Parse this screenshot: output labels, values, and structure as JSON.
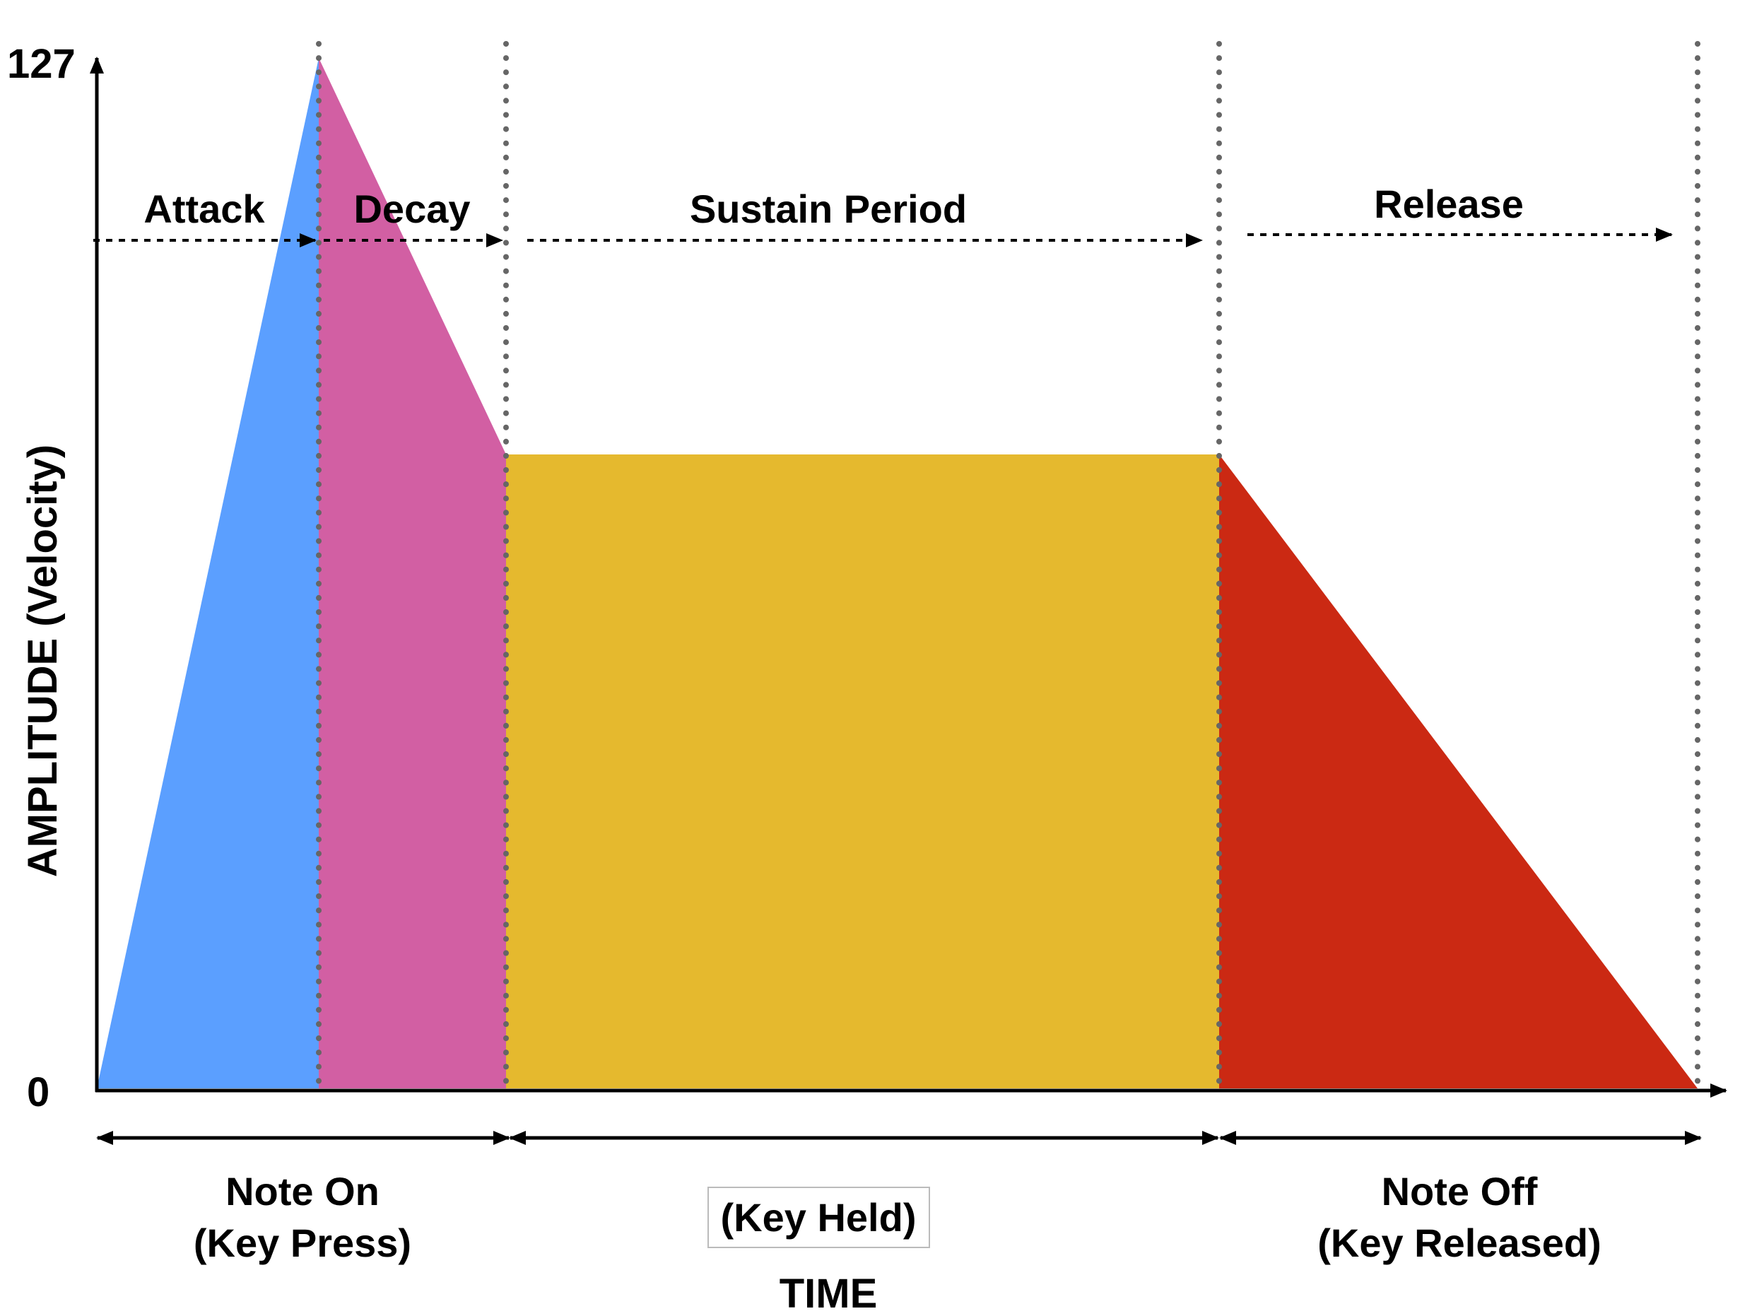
{
  "axes": {
    "y_label": "AMPLITUDE (Velocity)",
    "x_label": "TIME",
    "y_max_label": "127",
    "y_min_label": "0"
  },
  "phases": [
    {
      "label": "Attack",
      "color": "#5B9FFF"
    },
    {
      "label": "Decay",
      "color": "#D25FA3"
    },
    {
      "label": "Sustain Period",
      "color": "#E5B92E"
    },
    {
      "label": "Release",
      "color": "#CB2913"
    }
  ],
  "events": {
    "note_on_line1": "Note On",
    "note_on_line2": "(Key Press)",
    "key_held": "(Key Held)",
    "note_off_line1": "Note Off",
    "note_off_line2": "(Key Released)"
  },
  "envelope": {
    "peak_level": 127,
    "sustain_level": 79
  }
}
